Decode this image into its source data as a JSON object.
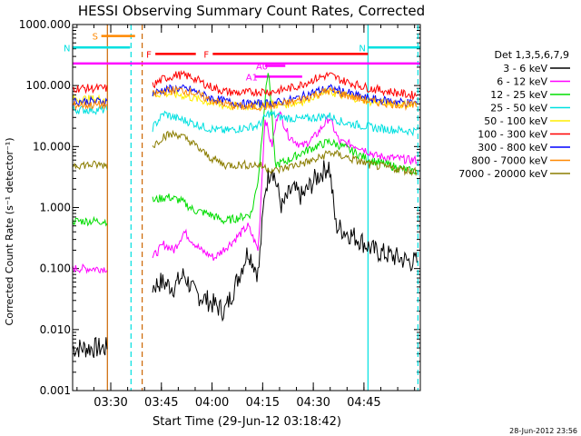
{
  "chart_data": {
    "type": "line",
    "title": "HESSI Observing Summary Count Rates, Corrected",
    "xlabel": "Start Time (29-Jun-12 03:18:42)",
    "ylabel": "Corrected Count Rate (s⁻¹ detector⁻¹)",
    "yscale": "log",
    "ylim": [
      0.001,
      1000
    ],
    "xlim_minutes": [
      0,
      103
    ],
    "yticks": [
      "0.001",
      "0.010",
      "0.100",
      "1.000",
      "10.000",
      "100.000",
      "1000.000"
    ],
    "xticks": [
      {
        "label": "03:30",
        "min": 11.3
      },
      {
        "label": "03:45",
        "min": 26.3
      },
      {
        "label": "04:00",
        "min": 41.3
      },
      {
        "label": "04:15",
        "min": 56.3
      },
      {
        "label": "04:30",
        "min": 71.3
      },
      {
        "label": "04:45",
        "min": 86.3
      }
    ],
    "legend_title": "Det 1,3,5,6,7,9",
    "legend_position": "right",
    "gaps": [
      [
        10.3,
        23.6
      ]
    ],
    "series": [
      {
        "name": "3 - 6 keV",
        "color": "#000000",
        "points": [
          [
            0,
            0.005
          ],
          [
            10.3,
            0.005
          ],
          [
            23.6,
            0.05
          ],
          [
            26,
            0.06
          ],
          [
            30,
            0.05
          ],
          [
            33,
            0.08
          ],
          [
            36,
            0.04
          ],
          [
            40,
            0.03
          ],
          [
            45,
            0.02
          ],
          [
            48,
            0.05
          ],
          [
            52,
            0.2
          ],
          [
            55,
            0.08
          ],
          [
            57,
            2
          ],
          [
            59,
            5
          ],
          [
            62,
            1
          ],
          [
            65,
            2
          ],
          [
            68,
            1.5
          ],
          [
            72,
            3
          ],
          [
            76,
            5
          ],
          [
            78,
            0.5
          ],
          [
            81,
            0.4
          ],
          [
            85,
            0.3
          ],
          [
            89,
            0.2
          ],
          [
            100,
            0.13
          ]
        ]
      },
      {
        "name": "6 - 12 keV",
        "color": "#ff00ff",
        "points": [
          [
            0,
            0.1
          ],
          [
            10.3,
            0.1
          ],
          [
            23.6,
            0.15
          ],
          [
            27,
            0.25
          ],
          [
            30,
            0.2
          ],
          [
            33,
            0.4
          ],
          [
            38,
            0.2
          ],
          [
            42,
            0.15
          ],
          [
            48,
            0.3
          ],
          [
            52,
            0.5
          ],
          [
            55,
            0.2
          ],
          [
            57,
            30
          ],
          [
            59,
            10
          ],
          [
            61,
            40
          ],
          [
            64,
            15
          ],
          [
            68,
            10
          ],
          [
            72,
            15
          ],
          [
            76,
            30
          ],
          [
            79,
            12
          ],
          [
            85,
            10
          ],
          [
            90,
            7
          ],
          [
            100,
            6
          ]
        ]
      },
      {
        "name": "12 - 25 keV",
        "color": "#00dd00",
        "points": [
          [
            0,
            0.6
          ],
          [
            10.3,
            0.6
          ],
          [
            23.6,
            1.3
          ],
          [
            28,
            1.5
          ],
          [
            32,
            1.3
          ],
          [
            36,
            0.9
          ],
          [
            40,
            0.8
          ],
          [
            45,
            0.6
          ],
          [
            50,
            0.7
          ],
          [
            53,
            0.8
          ],
          [
            55,
            3
          ],
          [
            57,
            60
          ],
          [
            58,
            200
          ],
          [
            60,
            5
          ],
          [
            64,
            6
          ],
          [
            68,
            8
          ],
          [
            72,
            10
          ],
          [
            76,
            12
          ],
          [
            80,
            10
          ],
          [
            88,
            6
          ],
          [
            100,
            4
          ]
        ]
      },
      {
        "name": "25 - 50 keV",
        "color": "#00e0e0",
        "points": [
          [
            0,
            40
          ],
          [
            10.3,
            40
          ],
          [
            23.6,
            20
          ],
          [
            27,
            35
          ],
          [
            30,
            30
          ],
          [
            35,
            25
          ],
          [
            40,
            20
          ],
          [
            45,
            18
          ],
          [
            50,
            20
          ],
          [
            55,
            22
          ],
          [
            58,
            35
          ],
          [
            62,
            30
          ],
          [
            68,
            28
          ],
          [
            72,
            30
          ],
          [
            76,
            32
          ],
          [
            80,
            25
          ],
          [
            90,
            20
          ],
          [
            100,
            18
          ]
        ]
      },
      {
        "name": "50 - 100 keV",
        "color": "#ffee00",
        "points": [
          [
            0,
            60
          ],
          [
            10.3,
            60
          ],
          [
            23.6,
            70
          ],
          [
            27,
            75
          ],
          [
            32,
            70
          ],
          [
            37,
            60
          ],
          [
            42,
            50
          ],
          [
            47,
            45
          ],
          [
            52,
            45
          ],
          [
            57,
            50
          ],
          [
            62,
            48
          ],
          [
            68,
            55
          ],
          [
            72,
            70
          ],
          [
            76,
            78
          ],
          [
            80,
            70
          ],
          [
            88,
            55
          ],
          [
            100,
            48
          ]
        ]
      },
      {
        "name": "100 - 300 keV",
        "color": "#ff0000",
        "points": [
          [
            0,
            90
          ],
          [
            10.3,
            90
          ],
          [
            23.6,
            100
          ],
          [
            27,
            130
          ],
          [
            31,
            150
          ],
          [
            35,
            140
          ],
          [
            40,
            100
          ],
          [
            45,
            80
          ],
          [
            50,
            75
          ],
          [
            55,
            80
          ],
          [
            60,
            80
          ],
          [
            66,
            95
          ],
          [
            72,
            130
          ],
          [
            76,
            150
          ],
          [
            80,
            120
          ],
          [
            88,
            90
          ],
          [
            100,
            70
          ]
        ]
      },
      {
        "name": "300 - 800 keV",
        "color": "#0000ff",
        "points": [
          [
            0,
            55
          ],
          [
            10.3,
            55
          ],
          [
            23.6,
            75
          ],
          [
            27,
            85
          ],
          [
            31,
            90
          ],
          [
            35,
            85
          ],
          [
            40,
            65
          ],
          [
            45,
            55
          ],
          [
            50,
            50
          ],
          [
            55,
            50
          ],
          [
            60,
            52
          ],
          [
            66,
            60
          ],
          [
            72,
            80
          ],
          [
            76,
            90
          ],
          [
            80,
            80
          ],
          [
            88,
            60
          ],
          [
            100,
            52
          ]
        ]
      },
      {
        "name": "800 - 7000 keV",
        "color": "#ff8800",
        "points": [
          [
            0,
            48
          ],
          [
            10.3,
            48
          ],
          [
            23.6,
            70
          ],
          [
            27,
            80
          ],
          [
            31,
            85
          ],
          [
            35,
            80
          ],
          [
            40,
            60
          ],
          [
            45,
            50
          ],
          [
            50,
            45
          ],
          [
            55,
            45
          ],
          [
            60,
            47
          ],
          [
            66,
            55
          ],
          [
            72,
            72
          ],
          [
            76,
            82
          ],
          [
            80,
            72
          ],
          [
            88,
            55
          ],
          [
            100,
            47
          ]
        ]
      },
      {
        "name": "7000 - 20000 keV",
        "color": "#8b7d00",
        "points": [
          [
            0,
            5
          ],
          [
            10.3,
            5
          ],
          [
            23.6,
            10
          ],
          [
            27,
            15
          ],
          [
            31,
            16
          ],
          [
            35,
            12
          ],
          [
            40,
            7
          ],
          [
            45,
            5
          ],
          [
            50,
            5
          ],
          [
            55,
            5
          ],
          [
            60,
            4
          ],
          [
            66,
            5
          ],
          [
            72,
            6
          ],
          [
            76,
            8
          ],
          [
            80,
            7
          ],
          [
            88,
            5
          ],
          [
            100,
            4
          ]
        ]
      }
    ],
    "flags": [
      {
        "label": "S",
        "color": "#ff8800",
        "start": 8.5,
        "end": 18.5,
        "level": 650
      },
      {
        "label": "N",
        "color": "#00e0e0",
        "start": 0,
        "end": 17,
        "level": 420
      },
      {
        "label": "N",
        "color": "#00e0e0",
        "start": 87.5,
        "end": 103,
        "level": 420
      },
      {
        "label": "F",
        "color": "#ff0000",
        "start": 24.5,
        "end": 36.5,
        "level": 330
      },
      {
        "label": "F",
        "color": "#ff0000",
        "start": 41.5,
        "end": 87.5,
        "level": 330
      },
      {
        "label": "A0",
        "color": "#ff00ff",
        "start": 57,
        "end": 63,
        "level": 210
      },
      {
        "label": "A1",
        "color": "#ff00ff",
        "start": 54,
        "end": 68,
        "level": 140
      }
    ],
    "vlines": [
      {
        "min": 10.3,
        "color": "#cc6600",
        "style": "solid"
      },
      {
        "min": 17.3,
        "color": "#00e0e0",
        "style": "dashed"
      },
      {
        "min": 20.6,
        "color": "#cc6600",
        "style": "dashed"
      },
      {
        "min": 87.5,
        "color": "#00e0e0",
        "style": "solid"
      },
      {
        "min": 102.3,
        "color": "#00e0e0",
        "style": "dashed"
      }
    ],
    "attenuator_level": 230,
    "attenuator_color": "#ff00ff",
    "footer": "28-Jun-2012 23:56"
  }
}
